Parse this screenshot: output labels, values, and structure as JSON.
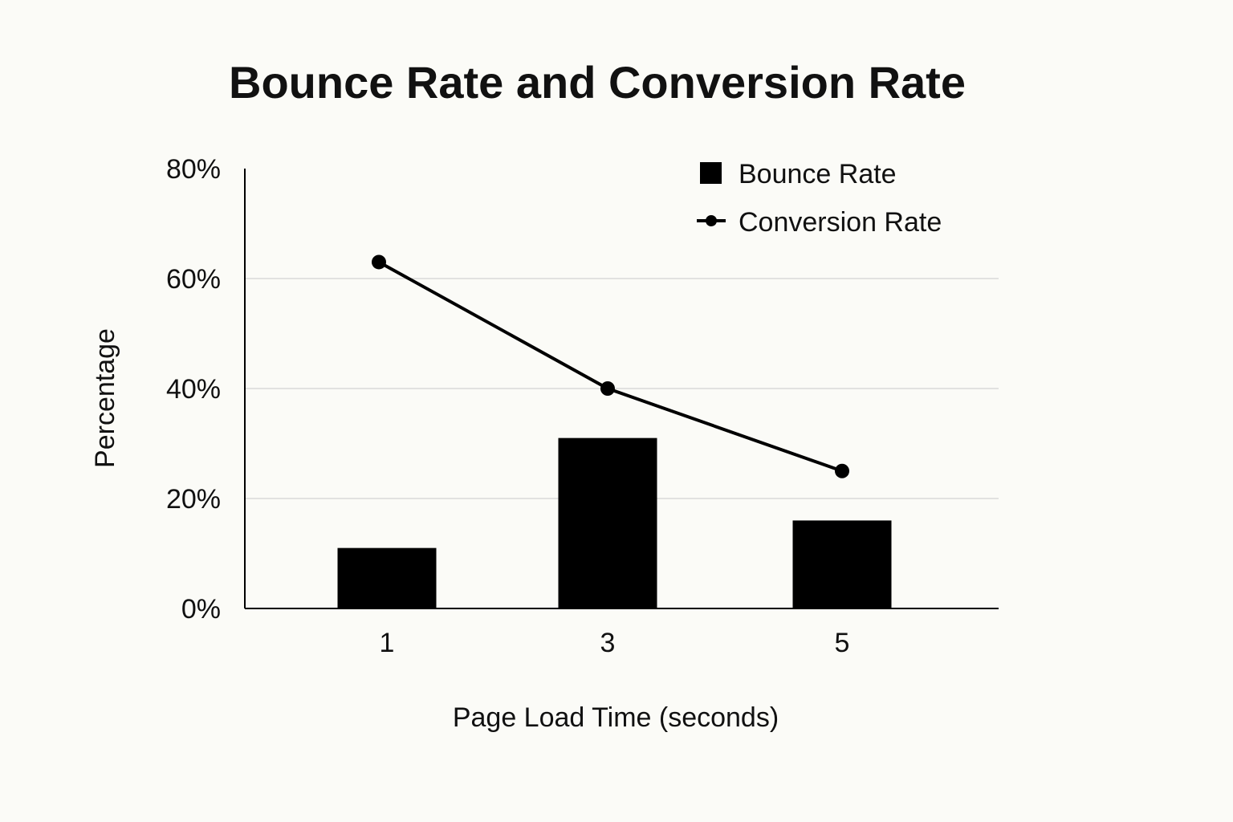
{
  "chart_data": {
    "type": "bar",
    "title": "Bounce Rate and Conversion Rate",
    "xlabel": "Page Load Time (seconds)",
    "ylabel": "Percentage",
    "categories": [
      "1",
      "3",
      "5"
    ],
    "ylim": [
      0,
      80
    ],
    "yticks": [
      0,
      20,
      40,
      60,
      80
    ],
    "ytick_labels": [
      "0%",
      "20%",
      "40%",
      "60%",
      "80%"
    ],
    "grid": true,
    "legend_position": "top-right",
    "series": [
      {
        "name": "Bounce Rate",
        "kind": "bar",
        "values": [
          11,
          31,
          16
        ]
      },
      {
        "name": "Conversion Rate",
        "kind": "line",
        "values": [
          63,
          40,
          25
        ]
      }
    ]
  },
  "colors": {
    "ink": "#000000",
    "grid": "#d9d9d9",
    "background": "#fbfbf7"
  }
}
